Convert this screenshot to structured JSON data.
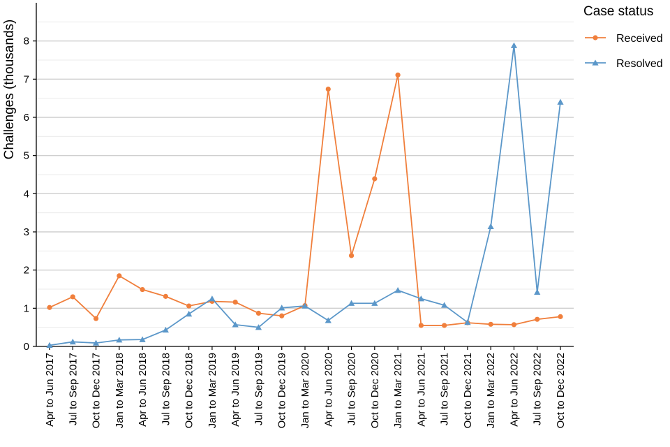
{
  "chart_data": {
    "type": "line",
    "ylabel": "Challenges (thousands)",
    "ylim": [
      0,
      9
    ],
    "yticks": [
      0,
      1,
      2,
      3,
      4,
      5,
      6,
      7,
      8
    ],
    "grid": true,
    "legend_title": "Case status",
    "legend_position": "top-right",
    "categories": [
      "Apr to Jun 2017",
      "Jul to Sep 2017",
      "Oct to Dec 2017",
      "Jan to Mar 2018",
      "Apr to Jun 2018",
      "Jul to Sep 2018",
      "Oct to Dec 2018",
      "Jan to Mar 2019",
      "Apr to Jun 2019",
      "Jul to Sep 2019",
      "Oct to Dec 2019",
      "Jan to Mar 2020",
      "Apr to Jun 2020",
      "Jul to Sep 2020",
      "Oct to Dec 2020",
      "Jan to Mar 2021",
      "Apr to Jun 2021",
      "Jul to Sep 2021",
      "Oct to Dec 2021",
      "Jan to Mar 2022",
      "Apr to Jun 2022",
      "Jul to Sep 2022",
      "Oct to Dec 2022"
    ],
    "series": [
      {
        "name": "Received",
        "color": "#f07f3c",
        "marker": "circle",
        "values": [
          1.02,
          1.3,
          0.73,
          1.85,
          1.49,
          1.31,
          1.06,
          1.18,
          1.16,
          0.87,
          0.8,
          1.07,
          6.74,
          2.38,
          4.39,
          7.11,
          0.55,
          0.55,
          0.62,
          0.58,
          0.57,
          0.71,
          0.78
        ]
      },
      {
        "name": "Resolved",
        "color": "#5b97c9",
        "marker": "triangle",
        "values": [
          0.03,
          0.12,
          0.09,
          0.17,
          0.18,
          0.43,
          0.85,
          1.25,
          0.57,
          0.5,
          1.01,
          1.06,
          0.68,
          1.13,
          1.13,
          1.47,
          1.25,
          1.08,
          0.63,
          3.14,
          7.88,
          1.42,
          6.4
        ]
      }
    ]
  }
}
